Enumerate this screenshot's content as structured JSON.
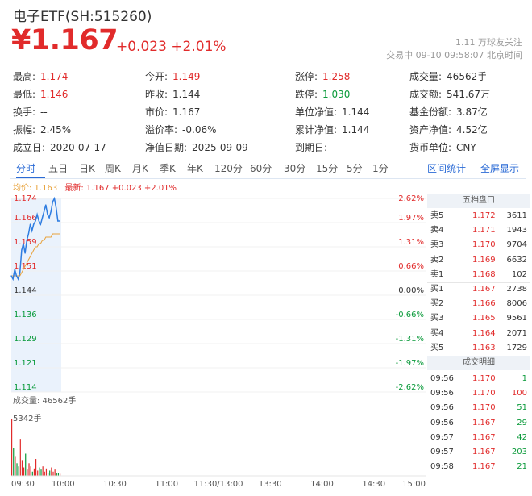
{
  "header": {
    "title": "电子ETF(SH:515260)",
    "price": "¥1.167",
    "change": "+0.023  +2.01%",
    "follow": "1.11 万球友关注",
    "status": "交易中 09-10 09:58:07 北京时间"
  },
  "stats": [
    [
      {
        "l": "最高:",
        "v": "1.174",
        "c": "red"
      },
      {
        "l": "今开:",
        "v": "1.149",
        "c": "red"
      },
      {
        "l": "涨停:",
        "v": "1.258",
        "c": "red"
      },
      {
        "l": "成交量:",
        "v": "46562手",
        "c": ""
      }
    ],
    [
      {
        "l": "最低:",
        "v": "1.146",
        "c": "red"
      },
      {
        "l": "昨收:",
        "v": "1.144",
        "c": ""
      },
      {
        "l": "跌停:",
        "v": "1.030",
        "c": "green"
      },
      {
        "l": "成交额:",
        "v": "541.67万",
        "c": ""
      }
    ],
    [
      {
        "l": "换手:",
        "v": "--",
        "c": ""
      },
      {
        "l": "市价:",
        "v": "1.167",
        "c": ""
      },
      {
        "l": "单位净值:",
        "v": "1.144",
        "c": ""
      },
      {
        "l": "基金份额:",
        "v": "3.87亿",
        "c": ""
      }
    ],
    [
      {
        "l": "振幅:",
        "v": "2.45%",
        "c": ""
      },
      {
        "l": "溢价率:",
        "v": "-0.06%",
        "c": ""
      },
      {
        "l": "累计净值:",
        "v": "1.144",
        "c": ""
      },
      {
        "l": "资产净值:",
        "v": "4.52亿",
        "c": ""
      }
    ],
    [
      {
        "l": "成立日:",
        "v": "2020-07-17",
        "c": ""
      },
      {
        "l": "净值日期:",
        "v": "2025-09-09",
        "c": ""
      },
      {
        "l": "到期日:",
        "v": "--",
        "c": ""
      },
      {
        "l": "货币单位:",
        "v": "CNY",
        "c": ""
      }
    ]
  ],
  "tabs": [
    "分时",
    "五日",
    "日K",
    "周K",
    "月K",
    "季K",
    "年K",
    "120分",
    "60分",
    "30分",
    "15分",
    "5分",
    "1分"
  ],
  "tab_links": [
    "区间统计",
    "全屏显示"
  ],
  "legend": {
    "avg": "均价: 1.163",
    "last": "最新: 1.167 +0.023 +2.01%"
  },
  "volume_label": "成交量: 46562手",
  "volume_max_label": "5342手",
  "chart_data": {
    "type": "line",
    "price_ticks": [
      "1.174",
      "1.166",
      "1.159",
      "1.151",
      "1.144",
      "1.136",
      "1.129",
      "1.121",
      "1.114"
    ],
    "pct_ticks": [
      "2.62%",
      "1.97%",
      "1.31%",
      "0.66%",
      "0.00%",
      "-0.66%",
      "-1.31%",
      "-1.97%",
      "-2.62%"
    ],
    "time_ticks": [
      "09:30",
      "10:00",
      "10:30",
      "11:00",
      "11:30/13:00",
      "13:30",
      "14:00",
      "14:30",
      "15:00"
    ],
    "ylim": [
      1.114,
      1.174
    ],
    "price": [
      1.15,
      1.149,
      1.152,
      1.15,
      1.149,
      1.151,
      1.158,
      1.16,
      1.157,
      1.161,
      1.163,
      1.166,
      1.164,
      1.166,
      1.167,
      1.169,
      1.167,
      1.166,
      1.168,
      1.17,
      1.172,
      1.169,
      1.168,
      1.17,
      1.173,
      1.174,
      1.171,
      1.167,
      1.167
    ],
    "avg": [
      1.15,
      1.15,
      1.15,
      1.15,
      1.15,
      1.15,
      1.151,
      1.152,
      1.153,
      1.154,
      1.155,
      1.156,
      1.157,
      1.158,
      1.159,
      1.159,
      1.16,
      1.16,
      1.161,
      1.161,
      1.162,
      1.162,
      1.162,
      1.162,
      1.163,
      1.163,
      1.163,
      1.163,
      1.163
    ],
    "volume": [
      5342,
      2600,
      1800,
      1200,
      900,
      3500,
      1500,
      800,
      2100,
      600,
      1200,
      900,
      400,
      700,
      1600,
      500,
      800,
      600,
      900,
      400,
      700,
      300,
      500,
      800,
      400,
      600,
      300,
      300,
      200
    ]
  },
  "orderbook": {
    "title": "五档盘口",
    "asks": [
      {
        "n": "卖5",
        "p": "1.172",
        "v": "3611"
      },
      {
        "n": "卖4",
        "p": "1.171",
        "v": "1943"
      },
      {
        "n": "卖3",
        "p": "1.170",
        "v": "9704"
      },
      {
        "n": "卖2",
        "p": "1.169",
        "v": "6632"
      },
      {
        "n": "卖1",
        "p": "1.168",
        "v": "102"
      }
    ],
    "bids": [
      {
        "n": "买1",
        "p": "1.167",
        "v": "2738"
      },
      {
        "n": "买2",
        "p": "1.166",
        "v": "8006"
      },
      {
        "n": "买3",
        "p": "1.165",
        "v": "9561"
      },
      {
        "n": "买4",
        "p": "1.164",
        "v": "2071"
      },
      {
        "n": "买5",
        "p": "1.163",
        "v": "1729"
      }
    ]
  },
  "trades": {
    "title": "成交明细",
    "rows": [
      {
        "t": "09:56",
        "p": "1.170",
        "v": "1",
        "c": "green"
      },
      {
        "t": "09:56",
        "p": "1.170",
        "v": "100",
        "c": "red"
      },
      {
        "t": "09:56",
        "p": "1.170",
        "v": "51",
        "c": "green"
      },
      {
        "t": "09:56",
        "p": "1.167",
        "v": "29",
        "c": "green"
      },
      {
        "t": "09:57",
        "p": "1.167",
        "v": "42",
        "c": "green"
      },
      {
        "t": "09:57",
        "p": "1.167",
        "v": "203",
        "c": "green"
      },
      {
        "t": "09:58",
        "p": "1.167",
        "v": "21",
        "c": "green"
      }
    ]
  }
}
